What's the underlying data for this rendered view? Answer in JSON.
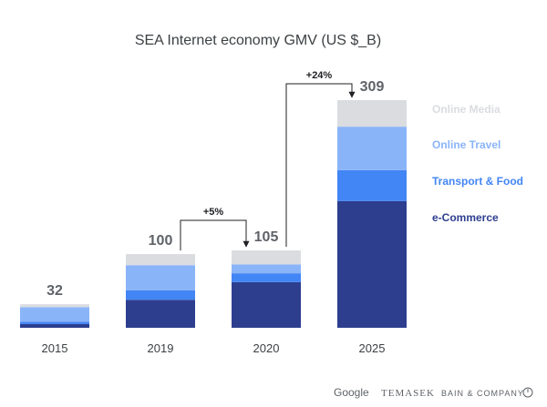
{
  "chart_data": {
    "type": "bar",
    "stacked": true,
    "title": "SEA Internet economy GMV (US $_B)",
    "xlabel": "",
    "ylabel": "",
    "ylim": [
      0,
      309
    ],
    "grid": false,
    "legend_position": "right",
    "categories": [
      "2015",
      "2019",
      "2020",
      "2025"
    ],
    "totals": [
      "32",
      "100",
      "105",
      "309"
    ],
    "series": [
      {
        "name": "e-Commerce",
        "color": "#2d3e8f",
        "values": [
          5,
          38,
          62,
          172
        ]
      },
      {
        "name": "Transport & Food",
        "color": "#4285f4",
        "values": [
          3,
          13,
          12,
          42
        ]
      },
      {
        "name": "Online Travel",
        "color": "#8ab4f8",
        "values": [
          20,
          34,
          12,
          59
        ]
      },
      {
        "name": "Online Media",
        "color": "#dadce0",
        "values": [
          4,
          15,
          19,
          36
        ]
      }
    ],
    "annotations": [
      {
        "text": "+5%",
        "from": "2019",
        "to": "2020"
      },
      {
        "text": "+24%",
        "from": "2020",
        "to": "2025"
      }
    ]
  },
  "logos": {
    "google": "Google",
    "temasek": "TEMASEK",
    "bain": "BAIN & COMPANY"
  }
}
